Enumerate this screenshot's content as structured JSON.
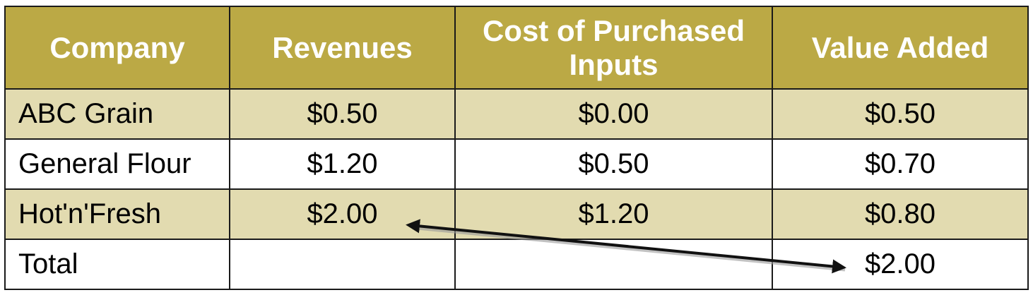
{
  "table": {
    "headers": [
      {
        "label": "Company"
      },
      {
        "label": "Revenues"
      },
      {
        "label": "Cost of Purchased Inputs"
      },
      {
        "label": "Value Added"
      }
    ],
    "rows": [
      {
        "company": "ABC Grain",
        "revenues": "$0.50",
        "cost": "$0.00",
        "value_added": "$0.50"
      },
      {
        "company": "General Flour",
        "revenues": "$1.20",
        "cost": "$0.50",
        "value_added": "$0.70"
      },
      {
        "company": "Hot'n'Fresh",
        "revenues": "$2.00",
        "cost": "$1.20",
        "value_added": "$0.80"
      },
      {
        "company": "Total",
        "revenues": "",
        "cost": "",
        "value_added": "$2.00"
      }
    ]
  },
  "colors": {
    "header_bg": "#bba945",
    "header_text": "#ffffff",
    "row_shaded": "#e2dbb0",
    "row_plain": "#ffffff",
    "border": "#1a1a1a"
  },
  "icons": {
    "arrow": "double-headed-arrow-icon"
  }
}
